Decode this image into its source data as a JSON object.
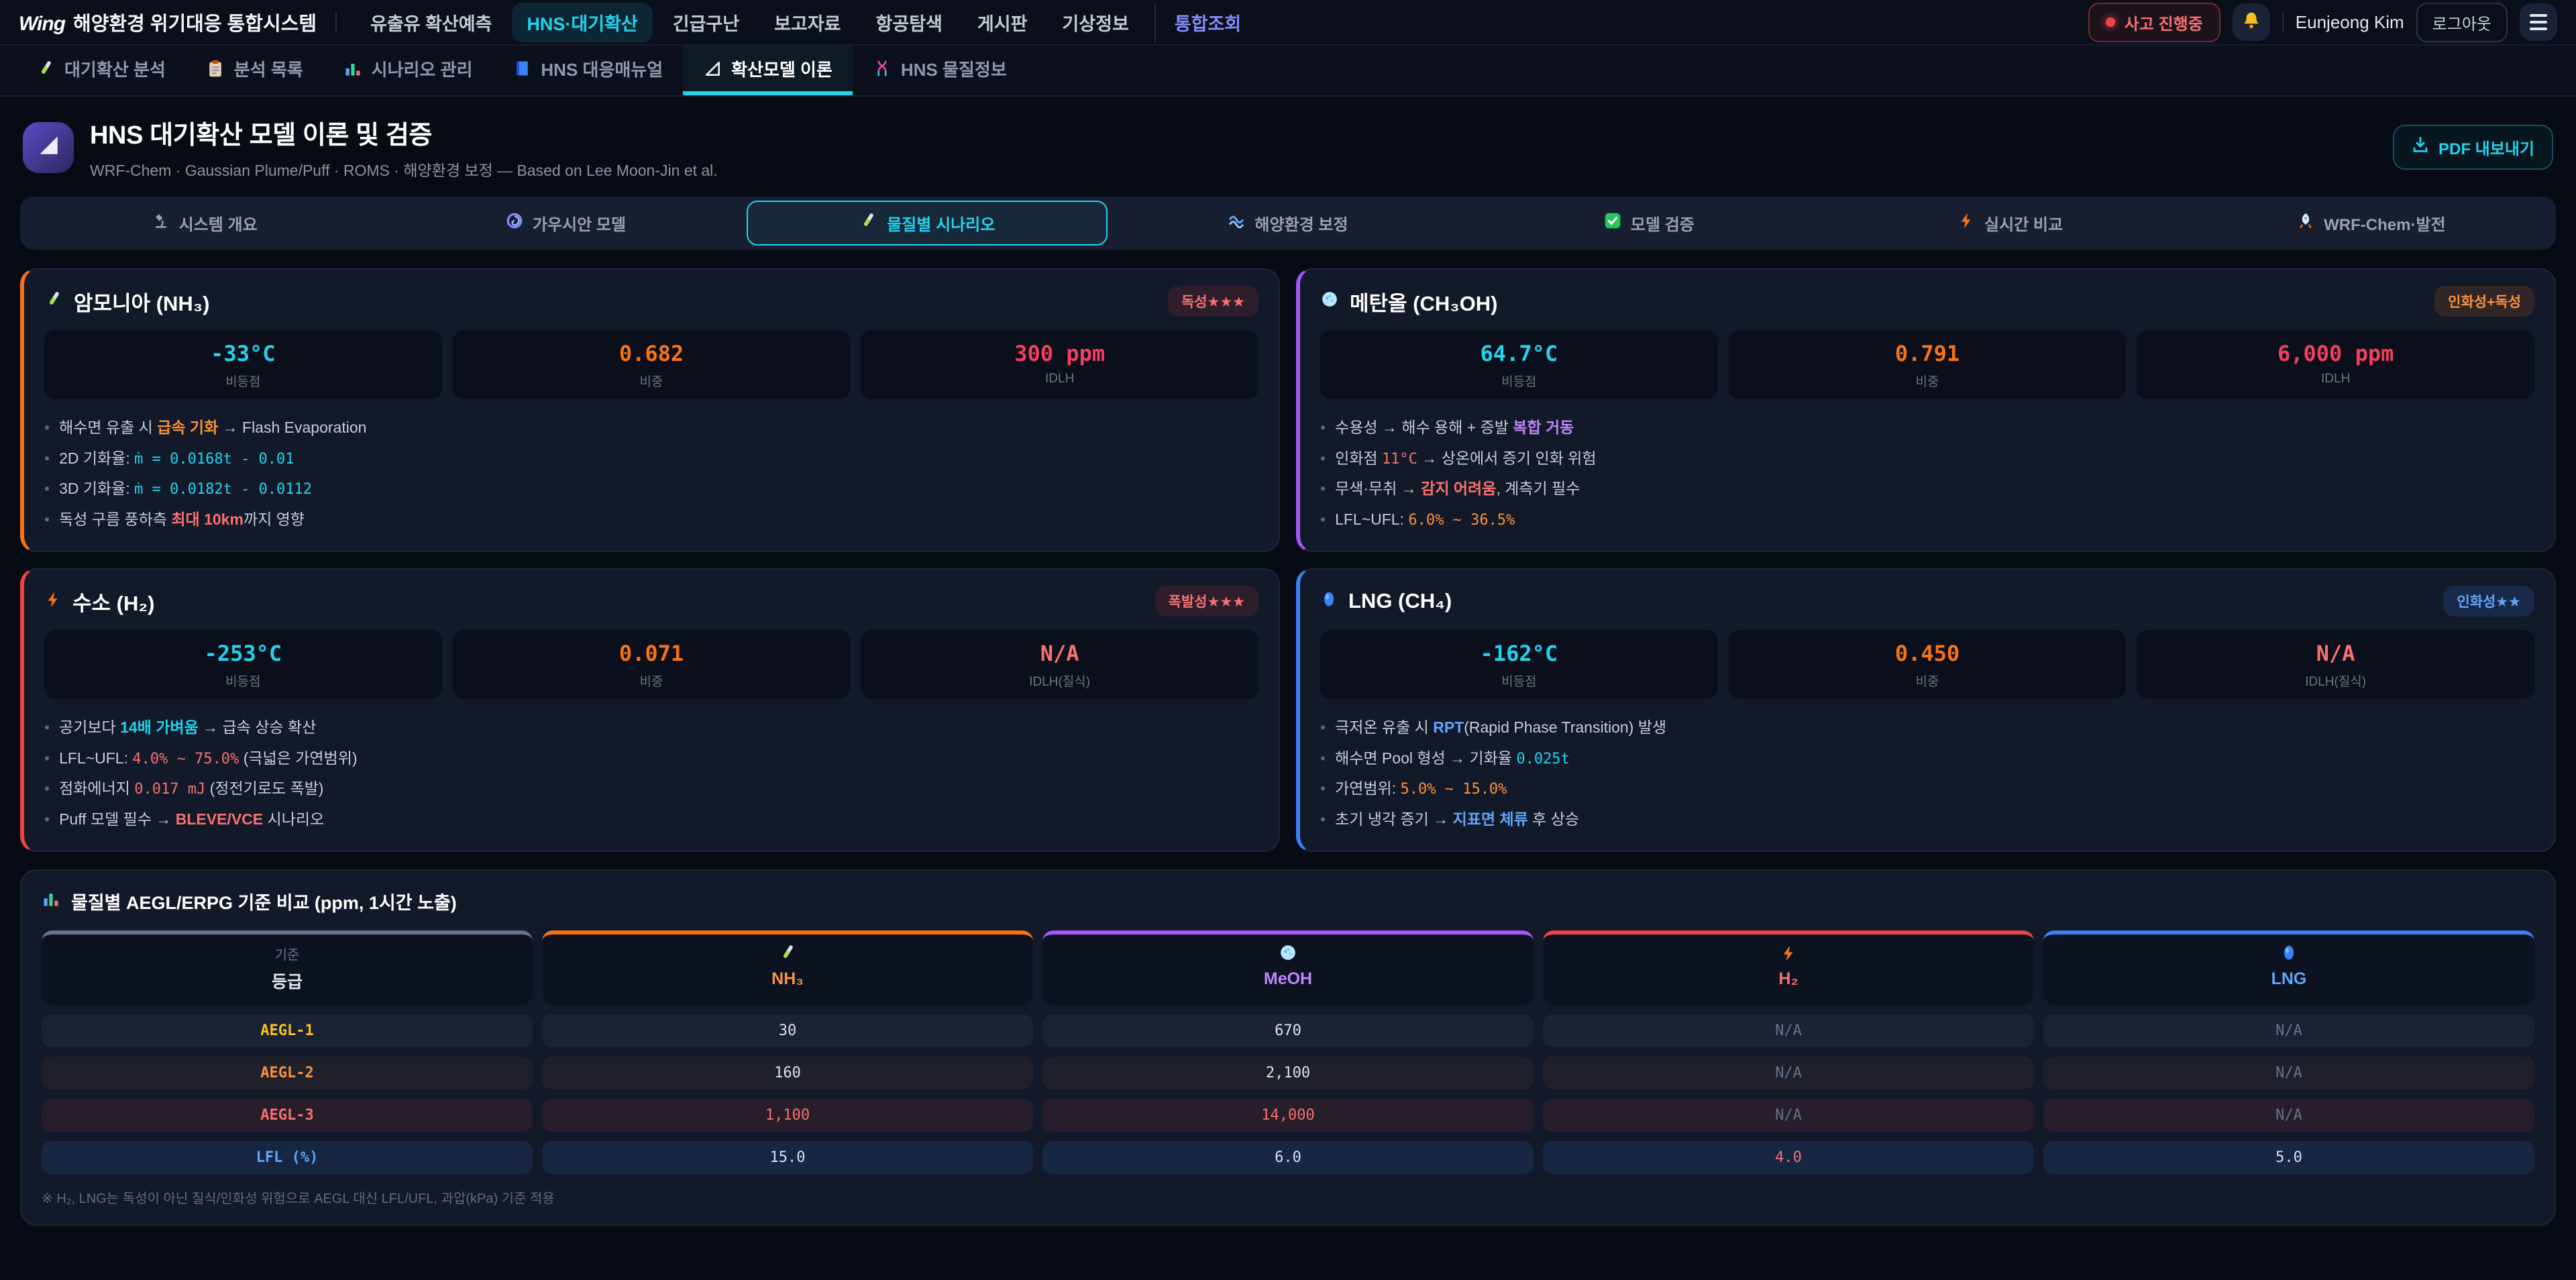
{
  "topnav": {
    "logo_mark": "Wing",
    "logo_text": "해양환경 위기대응 통합시스템",
    "items": [
      {
        "label": "유출유 확산예측",
        "state": "normal"
      },
      {
        "label": "HNS·대기확산",
        "state": "active"
      },
      {
        "label": "긴급구난",
        "state": "normal"
      },
      {
        "label": "보고자료",
        "state": "normal"
      },
      {
        "label": "항공탐색",
        "state": "normal"
      },
      {
        "label": "게시판",
        "state": "normal"
      },
      {
        "label": "기상정보",
        "state": "normal"
      },
      {
        "label": "통합조회",
        "state": "accent"
      }
    ],
    "incident_badge": "사고 진행중",
    "bell_icon": "bell",
    "user_name": "Eunjeong Kim",
    "logout_label": "로그아웃",
    "menu_icon": "hamburger"
  },
  "subnav": [
    {
      "icon": "test-tube",
      "label": "대기확산 분석",
      "active": false
    },
    {
      "icon": "clipboard",
      "label": "분석 목록",
      "active": false
    },
    {
      "icon": "bar-chart",
      "label": "시나리오 관리",
      "active": false
    },
    {
      "icon": "book",
      "label": "HNS 대응매뉴얼",
      "active": false
    },
    {
      "icon": "triangle-ruler",
      "label": "확산모델 이론",
      "active": true
    },
    {
      "icon": "dna",
      "label": "HNS 물질정보",
      "active": false
    }
  ],
  "header": {
    "icon": "triangle-ruler",
    "title": "HNS 대기확산 모델 이론 및 검증",
    "subtitle": "WRF-Chem · Gaussian Plume/Puff · ROMS · 해양환경 보정 — Based on Lee Moon-Jin et al.",
    "pdf_button": "PDF 내보내기",
    "pdf_icon": "download"
  },
  "tabs": [
    {
      "icon": "microscope",
      "label": "시스템 개요",
      "active": false
    },
    {
      "icon": "swirl",
      "label": "가우시안 모델",
      "active": false
    },
    {
      "icon": "test-tube",
      "label": "물질별 시나리오",
      "active": true
    },
    {
      "icon": "wave",
      "label": "해양환경 보정",
      "active": false
    },
    {
      "icon": "check",
      "label": "모델 검증",
      "active": false
    },
    {
      "icon": "lightning",
      "label": "실시간 비교",
      "active": false
    },
    {
      "icon": "rocket",
      "label": "WRF-Chem·발전",
      "active": false
    }
  ],
  "cards": [
    {
      "icon": "test-tube",
      "accent": "#f97316",
      "name": "암모니아 (NH₃)",
      "badge": {
        "label": "독성★★★",
        "theme": "red"
      },
      "stats": [
        {
          "value": "-33°C",
          "label": "비등점",
          "color": "#22d3ee"
        },
        {
          "value": "0.682",
          "label": "비중",
          "color": "#f97316"
        },
        {
          "value": "300 ppm",
          "label": "IDLH",
          "color": "#f43f5e"
        }
      ],
      "bullets": [
        [
          {
            "t": "해수면 유출 시 "
          },
          {
            "t": "급속 기화",
            "s": "orange-bold"
          },
          {
            "t": " → Flash Evaporation"
          }
        ],
        [
          {
            "t": "2D 기화율: "
          },
          {
            "t": "ṁ = 0.0168t - 0.01",
            "s": "cyan-mono"
          }
        ],
        [
          {
            "t": "3D 기화율: "
          },
          {
            "t": "ṁ = 0.0182t - 0.0112",
            "s": "cyan-mono"
          }
        ],
        [
          {
            "t": "독성 구름 풍하측 "
          },
          {
            "t": "최대 10km",
            "s": "red-bold"
          },
          {
            "t": "까지 영향"
          }
        ]
      ]
    },
    {
      "icon": "petri",
      "accent": "#a855f7",
      "name": "메탄올 (CH₃OH)",
      "badge": {
        "label": "인화성+독성",
        "theme": "orange"
      },
      "stats": [
        {
          "value": "64.7°C",
          "label": "비등점",
          "color": "#22d3ee"
        },
        {
          "value": "0.791",
          "label": "비중",
          "color": "#f97316"
        },
        {
          "value": "6,000 ppm",
          "label": "IDLH",
          "color": "#f43f5e"
        }
      ],
      "bullets": [
        [
          {
            "t": "수용성 → 해수 용해 + 증발 "
          },
          {
            "t": "복합 거동",
            "s": "purple-bold"
          }
        ],
        [
          {
            "t": "인화점 "
          },
          {
            "t": "11°C",
            "s": "red-mono"
          },
          {
            "t": " → 상온에서 증기 인화 위험"
          }
        ],
        [
          {
            "t": "무색·무취 → "
          },
          {
            "t": "감지 어려움",
            "s": "red-bold"
          },
          {
            "t": ", 계측기 필수"
          }
        ],
        [
          {
            "t": "LFL~UFL: "
          },
          {
            "t": "6.0% ~ 36.5%",
            "s": "orange-mono"
          }
        ]
      ]
    },
    {
      "icon": "lightning",
      "accent": "#ef4444",
      "name": "수소 (H₂)",
      "badge": {
        "label": "폭발성★★★",
        "theme": "red"
      },
      "stats": [
        {
          "value": "-253°C",
          "label": "비등점",
          "color": "#22d3ee"
        },
        {
          "value": "0.071",
          "label": "비중",
          "color": "#f97316"
        },
        {
          "value": "N/A",
          "label": "IDLH(질식)",
          "color": "#f87171"
        }
      ],
      "bullets": [
        [
          {
            "t": "공기보다 "
          },
          {
            "t": "14배 가벼움",
            "s": "cyan-bold"
          },
          {
            "t": " → 급속 상승 확산"
          }
        ],
        [
          {
            "t": "LFL~UFL: "
          },
          {
            "t": "4.0% ~ 75.0%",
            "s": "red-mono"
          },
          {
            "t": " (극넓은 가연범위)"
          }
        ],
        [
          {
            "t": "점화에너지 "
          },
          {
            "t": "0.017 mJ",
            "s": "red-mono"
          },
          {
            "t": " (정전기로도 폭발)"
          }
        ],
        [
          {
            "t": "Puff 모델 필수 → "
          },
          {
            "t": "BLEVE/VCE",
            "s": "red-bold"
          },
          {
            "t": " 시나리오"
          }
        ]
      ]
    },
    {
      "icon": "blue-drop",
      "accent": "#3b82f6",
      "name": "LNG (CH₄)",
      "badge": {
        "label": "인화성★★",
        "theme": "blue"
      },
      "stats": [
        {
          "value": "-162°C",
          "label": "비등점",
          "color": "#22d3ee"
        },
        {
          "value": "0.450",
          "label": "비중",
          "color": "#f97316"
        },
        {
          "value": "N/A",
          "label": "IDLH(질식)",
          "color": "#f87171"
        }
      ],
      "bullets": [
        [
          {
            "t": "극저온 유출 시 "
          },
          {
            "t": "RPT",
            "s": "blue-bold"
          },
          {
            "t": "(Rapid Phase Transition) 발생"
          }
        ],
        [
          {
            "t": "해수면 Pool 형성 → 기화율 "
          },
          {
            "t": "0.025t",
            "s": "cyan-mono"
          }
        ],
        [
          {
            "t": "가연범위: "
          },
          {
            "t": "5.0% ~ 15.0%",
            "s": "orange-mono"
          }
        ],
        [
          {
            "t": "초기 냉각 증기 → "
          },
          {
            "t": "지표면 체류",
            "s": "blue-bold"
          },
          {
            "t": " 후 상승"
          }
        ]
      ]
    }
  ],
  "table": {
    "icon": "chart",
    "title": "물질별 AEGL/ERPG 기준 비교 (ppm, 1시간 노출)",
    "columns": [
      {
        "top": "기준",
        "label": "등급",
        "border": "#64748b",
        "color": "#e2e8f0"
      },
      {
        "icon": "test-tube",
        "label": "NH₃",
        "border": "#f97316",
        "color": "#fb923c"
      },
      {
        "icon": "petri",
        "label": "MeOH",
        "border": "#a855f7",
        "color": "#c084fc"
      },
      {
        "icon": "lightning",
        "label": "H₂",
        "border": "#ef4444",
        "color": "#f87171"
      },
      {
        "icon": "blue-drop",
        "label": "LNG",
        "border": "#3b82f6",
        "color": "#60a5fa"
      }
    ],
    "rows": [
      {
        "label": "AEGL-1",
        "label_color": "#fbbf24",
        "tint": "none",
        "values": [
          {
            "text": "30"
          },
          {
            "text": "670"
          },
          {
            "text": "N/A",
            "muted": true
          },
          {
            "text": "N/A",
            "muted": true
          }
        ]
      },
      {
        "label": "AEGL-2",
        "label_color": "#fb923c",
        "tint": "warm",
        "values": [
          {
            "text": "160"
          },
          {
            "text": "2,100"
          },
          {
            "text": "N/A",
            "muted": true
          },
          {
            "text": "N/A",
            "muted": true
          }
        ]
      },
      {
        "label": "AEGL-3",
        "label_color": "#f87171",
        "tint": "red",
        "values": [
          {
            "text": "1,100",
            "color": "#f87171"
          },
          {
            "text": "14,000",
            "color": "#f87171"
          },
          {
            "text": "N/A",
            "muted": true
          },
          {
            "text": "N/A",
            "muted": true
          }
        ]
      },
      {
        "label": "LFL (%)",
        "label_color": "#60a5fa",
        "tint": "blue",
        "values": [
          {
            "text": "15.0"
          },
          {
            "text": "6.0"
          },
          {
            "text": "4.0",
            "color": "#f87171"
          },
          {
            "text": "5.0"
          }
        ]
      }
    ],
    "footnote": "※ H₂, LNG는 독성이 아닌 질식/인화성 위험으로 AEGL 대신 LFL/UFL, 과압(kPa) 기준 적용"
  }
}
